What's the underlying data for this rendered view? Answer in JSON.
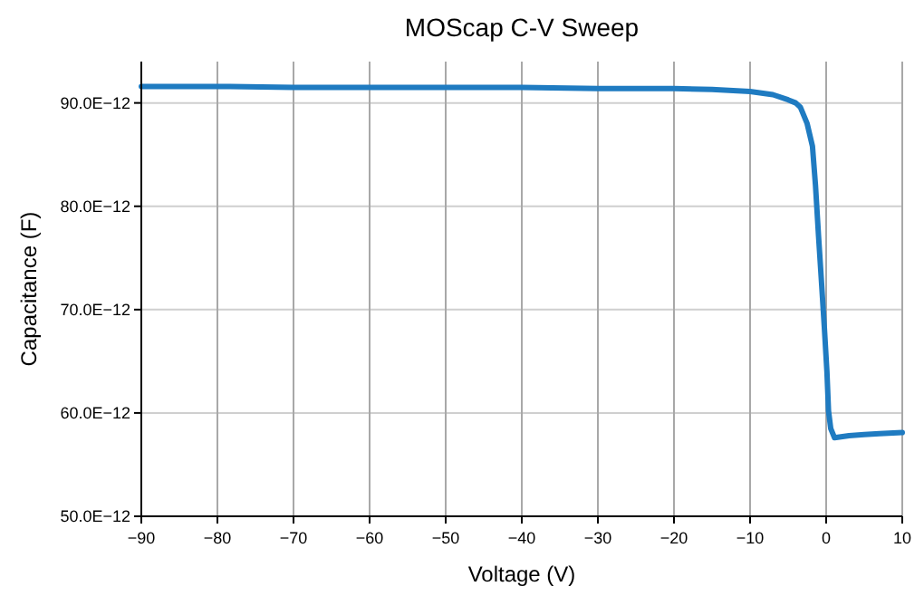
{
  "chart_data": {
    "type": "line",
    "title": "MOScap C-V Sweep",
    "xlabel": "Voltage (V)",
    "ylabel": "Capacitance (F)",
    "x": [
      -90,
      -80,
      -70,
      -60,
      -50,
      -40,
      -30,
      -20,
      -15,
      -10,
      -7,
      -5,
      -4,
      -3.4,
      -2.5,
      -1.8,
      -1.4,
      -1,
      -0.6,
      -0.24,
      0.1,
      0.31,
      0.6,
      1.1,
      3,
      5,
      7,
      10
    ],
    "series": [
      {
        "color": "#1f7bc1",
        "values": [
          9.16e-11,
          9.16e-11,
          9.15e-11,
          9.15e-11,
          9.15e-11,
          9.15e-11,
          9.14e-11,
          9.14e-11,
          9.13e-11,
          9.11e-11,
          9.08e-11,
          9.03e-11,
          9e-11,
          8.96e-11,
          8.8e-11,
          8.58e-11,
          8.2e-11,
          7.71e-11,
          7.25e-11,
          6.83e-11,
          6.4e-11,
          6.02e-11,
          5.85e-11,
          5.76e-11,
          5.78e-11,
          5.79e-11,
          5.8e-11,
          5.81e-11
        ]
      }
    ],
    "xlim": [
      -90,
      10
    ],
    "xticks": [
      -90,
      -80,
      -70,
      -60,
      -50,
      -40,
      -30,
      -20,
      -10,
      0,
      10
    ],
    "ylim": [
      5e-11,
      9.4e-11
    ],
    "yticks": [
      {
        "value": 5e-11,
        "label": "50.0E−12"
      },
      {
        "value": 6e-11,
        "label": "60.0E−12"
      },
      {
        "value": 7e-11,
        "label": "70.0E−12"
      },
      {
        "value": 8e-11,
        "label": "80.0E−12"
      },
      {
        "value": 9e-11,
        "label": "90.0E−12"
      }
    ],
    "grid": true,
    "marker": "none",
    "line_style": "solid"
  }
}
